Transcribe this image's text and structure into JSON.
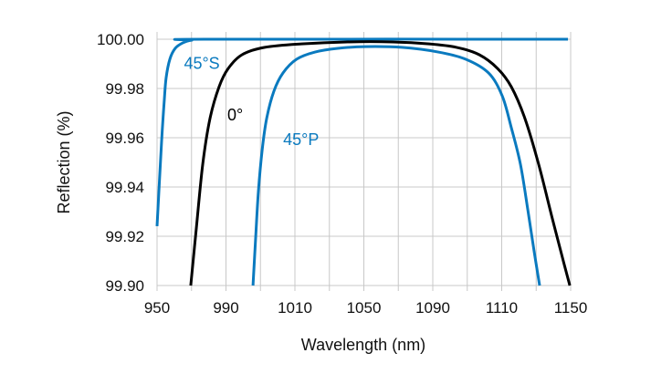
{
  "chart_data": {
    "type": "line",
    "title": "",
    "xlabel": "Wavelength (nm)",
    "ylabel": "Reflection (%)",
    "xlim": [
      950,
      1150
    ],
    "ylim": [
      99.9,
      100.0
    ],
    "grid": true,
    "x_gridlines": 12,
    "x_tick_labels": [
      "950",
      "990",
      "1010",
      "1050",
      "1090",
      "1110",
      "1150"
    ],
    "y_ticks": [
      99.9,
      99.92,
      99.94,
      99.96,
      99.98,
      100.0
    ],
    "y_tick_labels": [
      "99.90",
      "99.92",
      "99.94",
      "99.96",
      "99.98",
      "100.00"
    ],
    "legend": "none",
    "series": [
      {
        "name": "45°S",
        "color": "#0a7abf",
        "x": [
          950.0,
          952.2,
          953.5,
          954.4,
          956.2,
          958.8,
          962.4,
          966.8,
          973.4,
          1148.7
        ],
        "y": [
          99.9241,
          99.9585,
          99.9752,
          99.9844,
          99.9919,
          99.9963,
          99.9985,
          99.9996,
          100.0,
          100.0
        ]
      },
      {
        "name": "0°",
        "color": "#000000",
        "x": [
          966.3,
          969.0,
          972.1,
          975.6,
          980.0,
          984.4,
          991.1,
          1002.1,
          1019.8,
          1041.8,
          1063.9,
          1081.6,
          1094.8,
          1105.8,
          1114.7,
          1121.3,
          1127.9,
          1134.5,
          1141.2,
          1146.9,
          1149.6
        ],
        "y": [
          99.9,
          99.9233,
          99.9493,
          99.9678,
          99.9807,
          99.9881,
          99.9937,
          99.9967,
          99.9981,
          99.9989,
          99.9989,
          99.9981,
          99.9967,
          99.9937,
          99.9881,
          99.9807,
          99.9678,
          99.9493,
          99.927,
          99.9085,
          99.9
        ]
      },
      {
        "name": "45°P",
        "color": "#0a7abf",
        "x": [
          996.4,
          997.7,
          999.0,
          1000.8,
          1003.0,
          1006.5,
          1010.9,
          1017.5,
          1026.4,
          1037.4,
          1050.7,
          1068.3,
          1086.0,
          1099.2,
          1110.3,
          1116.9,
          1121.3,
          1125.7,
          1129.3,
          1132.3,
          1135.0
        ],
        "y": [
          99.9,
          99.9196,
          99.9381,
          99.9548,
          99.9678,
          99.9789,
          99.9863,
          99.9919,
          99.9948,
          99.9963,
          99.997,
          99.9967,
          99.9948,
          99.9919,
          99.9863,
          99.977,
          99.9641,
          99.9493,
          99.9307,
          99.9141,
          99.9
        ]
      }
    ],
    "annotations": [
      {
        "text": "45°S",
        "x": 963,
        "y": 99.988,
        "color": "#0a7abf"
      },
      {
        "text": "0°",
        "x": 984,
        "y": 99.967,
        "color": "#000000"
      },
      {
        "text": "45°P",
        "x": 1011,
        "y": 99.957,
        "color": "#0a7abf"
      }
    ]
  }
}
